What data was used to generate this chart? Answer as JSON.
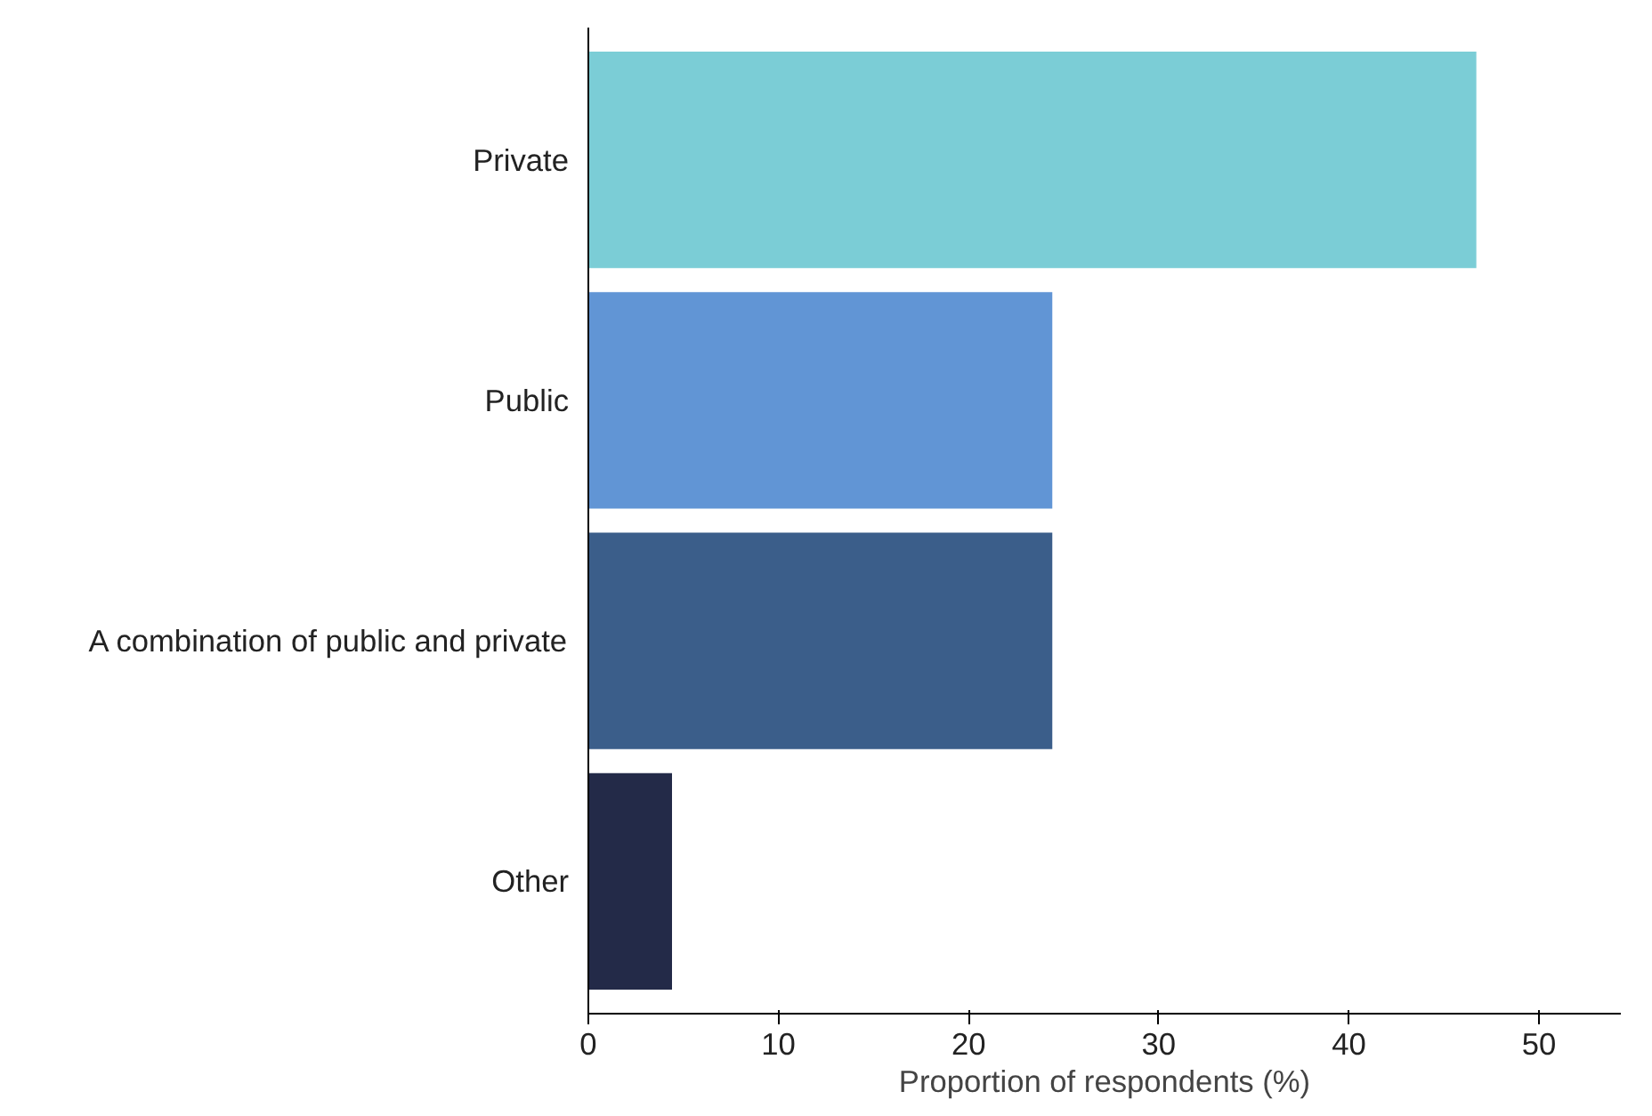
{
  "chart_data": {
    "type": "bar",
    "orientation": "horizontal",
    "categories": [
      "Private",
      "Public",
      "A combination of public and private",
      "Other"
    ],
    "values": [
      46.7,
      24.4,
      24.4,
      4.4
    ],
    "colors": [
      "#7bcdd6",
      "#6195d5",
      "#3b5e8a",
      "#232a48"
    ],
    "xlim": [
      0,
      54.3
    ],
    "xticks": [
      0,
      10,
      20,
      30,
      40,
      50
    ],
    "xlabel": "Proportion of respondents (%)",
    "grid": false
  }
}
